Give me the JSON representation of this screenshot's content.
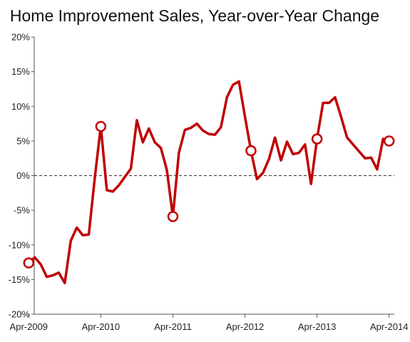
{
  "chart_data": {
    "type": "line",
    "title": "Home Improvement Sales, Year-over-Year Change",
    "xlabel": "",
    "ylabel": "",
    "ylim": [
      -20,
      20
    ],
    "y_ticks": [
      -20,
      -15,
      -10,
      -5,
      0,
      5,
      10,
      15,
      20
    ],
    "y_tick_labels": [
      "-20%",
      "-15%",
      "-10%",
      "-5%",
      "0%",
      "5%",
      "10%",
      "15%",
      "20%"
    ],
    "x_ticks": [
      "2009-04",
      "2010-04",
      "2011-04",
      "2012-04",
      "2013-04",
      "2014-04"
    ],
    "x_tick_labels": [
      "Apr-2009",
      "Apr-2010",
      "Apr-2011",
      "Apr-2012",
      "Apr-2013",
      "Apr-2014"
    ],
    "grid": false,
    "zero_line": "dashed",
    "colors": {
      "series": "#c00000",
      "axis": "#555555"
    },
    "series": [
      {
        "x": [
          "2009-04",
          "2009-05",
          "2009-06",
          "2009-07",
          "2009-08",
          "2009-09",
          "2009-10",
          "2009-11",
          "2009-12",
          "2010-01",
          "2010-02",
          "2010-03",
          "2010-04",
          "2010-05",
          "2010-06",
          "2010-07",
          "2010-08",
          "2010-09",
          "2010-10",
          "2010-11",
          "2010-12",
          "2011-01",
          "2011-02",
          "2011-03",
          "2011-04",
          "2011-05",
          "2011-06",
          "2011-07",
          "2011-08",
          "2011-09",
          "2011-10",
          "2011-11",
          "2011-12",
          "2012-01",
          "2012-02",
          "2012-03",
          "2012-04",
          "2012-05",
          "2012-06",
          "2012-07",
          "2012-08",
          "2012-09",
          "2012-10",
          "2012-11",
          "2012-12",
          "2013-01",
          "2013-02",
          "2013-03",
          "2013-04",
          "2013-05",
          "2013-06",
          "2013-07",
          "2013-08",
          "2013-09",
          "2013-10",
          "2013-11",
          "2013-12",
          "2014-01",
          "2014-02",
          "2014-03",
          "2014-04"
        ],
        "values": [
          -12.6,
          -11.8,
          -12.8,
          -14.6,
          -14.4,
          -14,
          -15.5,
          -9.4,
          -7.5,
          -8.6,
          -8.5,
          -0.3,
          7.1,
          -2.1,
          -2.3,
          -1.4,
          -0.2,
          1.0,
          8.0,
          4.8,
          6.8,
          4.8,
          4.0,
          0.8,
          -5.9,
          3.3,
          6.6,
          6.9,
          7.5,
          6.5,
          6.0,
          5.9,
          7.0,
          11.3,
          13.1,
          13.6,
          8.5,
          3.6,
          -0.5,
          0.4,
          2.4,
          5.5,
          2.2,
          4.9,
          3.1,
          3.3,
          4.5,
          -1.2,
          5.3,
          10.5,
          10.5,
          11.3,
          8.5,
          5.5,
          4.5,
          3.5,
          2.5,
          2.6,
          0.9,
          5.3,
          5.0
        ],
        "markers": [
          "2009-04",
          "2010-04",
          "2011-04",
          "2012-05",
          "2013-04",
          "2014-04"
        ]
      }
    ]
  }
}
